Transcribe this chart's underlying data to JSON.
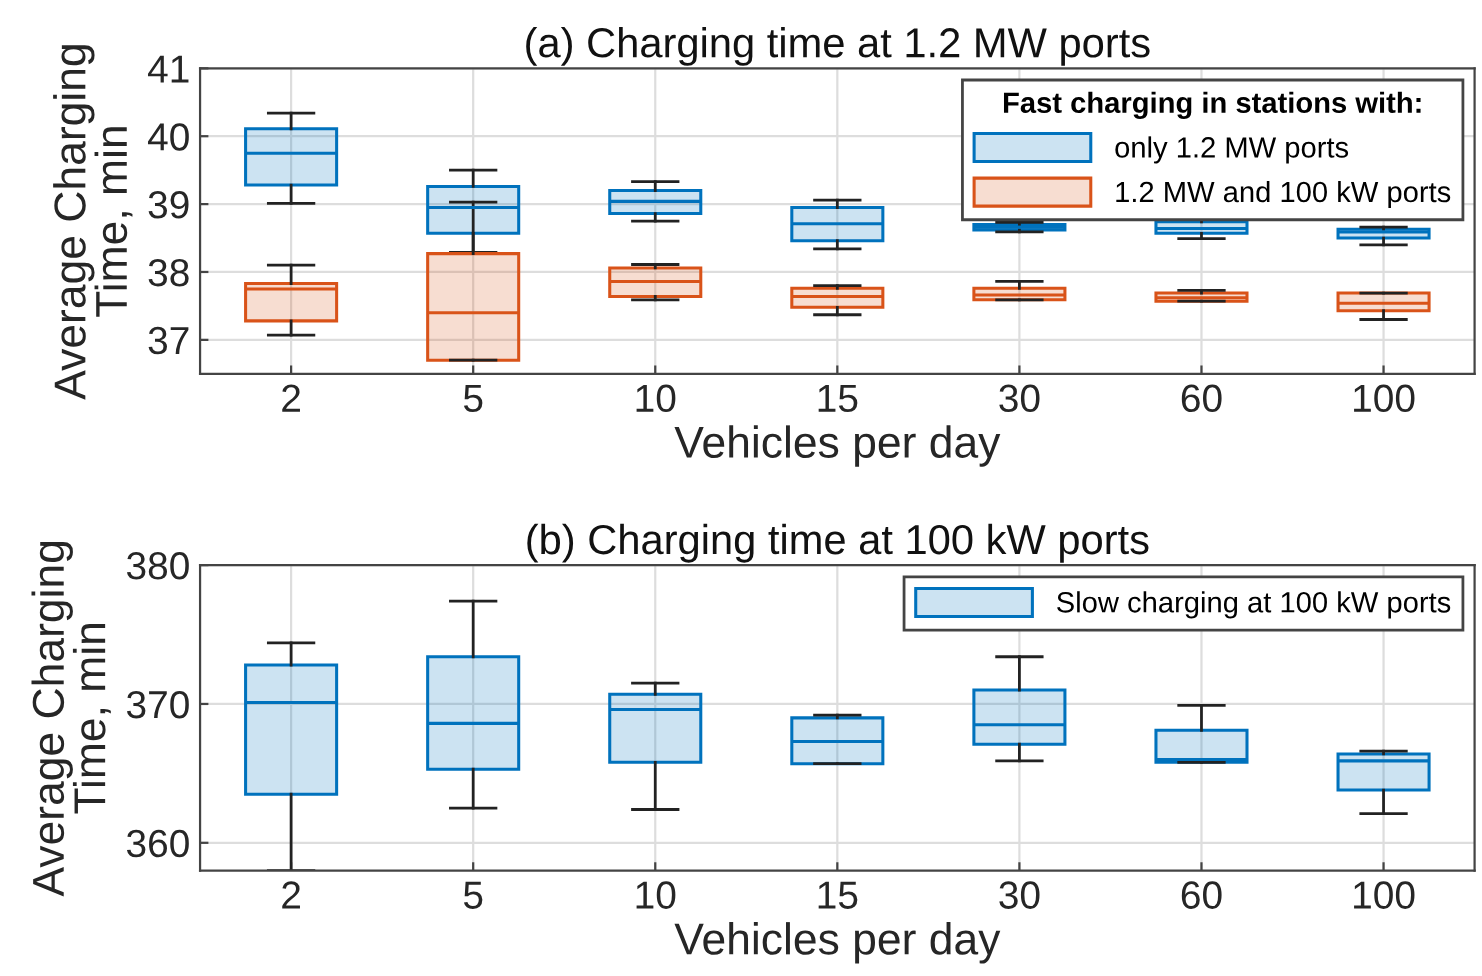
{
  "chart_data": [
    {
      "type": "box",
      "title": "(a) Charging time at 1.2 MW ports",
      "xlabel": "Vehicles per day",
      "ylabel": "Average Charging\nTime, min",
      "legend_title": "Fast charging in stations with:",
      "categories": [
        "2",
        "5",
        "10",
        "15",
        "30",
        "60",
        "100"
      ],
      "ylim": [
        36.5,
        41
      ],
      "yticks": [
        37,
        38,
        39,
        40,
        41
      ],
      "grid": true,
      "legend": "top right",
      "series": [
        {
          "name": "only 1.2 MW ports",
          "color": "#0072bd",
          "boxes": [
            {
              "low": 39.01,
              "q1": 39.28,
              "median": 39.75,
              "q3": 40.11,
              "high": 40.34
            },
            {
              "low": 38.29,
              "q1": 38.57,
              "median": 38.95,
              "q3": 39.26,
              "high": 39.5
            },
            {
              "low": 38.75,
              "q1": 38.86,
              "median": 39.04,
              "q3": 39.2,
              "high": 39.33
            },
            {
              "low": 38.34,
              "q1": 38.46,
              "median": 38.71,
              "q3": 38.95,
              "high": 39.06
            },
            {
              "low": 38.59,
              "q1": 38.62,
              "median": 38.66,
              "q3": 38.7,
              "high": 38.73
            },
            {
              "low": 38.49,
              "q1": 38.57,
              "median": 38.64,
              "q3": 38.74,
              "high": 38.8
            },
            {
              "low": 38.4,
              "q1": 38.5,
              "median": 38.59,
              "q3": 38.63,
              "high": 38.66
            }
          ]
        },
        {
          "name": "1.2 MW and 100 kW ports",
          "color": "#d95319",
          "boxes": [
            {
              "low": 37.07,
              "q1": 37.28,
              "median": 37.75,
              "q3": 37.83,
              "high": 38.1
            },
            {
              "low": 36.7,
              "q1": 36.7,
              "median": 37.4,
              "q3": 38.27,
              "high": 39.03
            },
            {
              "low": 37.59,
              "q1": 37.64,
              "median": 37.86,
              "q3": 38.06,
              "high": 38.11
            },
            {
              "low": 37.37,
              "q1": 37.48,
              "median": 37.64,
              "q3": 37.76,
              "high": 37.8
            },
            {
              "low": 37.59,
              "q1": 37.59,
              "median": 37.66,
              "q3": 37.76,
              "high": 37.86
            },
            {
              "low": 37.57,
              "q1": 37.57,
              "median": 37.62,
              "q3": 37.69,
              "high": 37.73
            },
            {
              "low": 37.3,
              "q1": 37.43,
              "median": 37.54,
              "q3": 37.69,
              "high": 37.69
            }
          ]
        }
      ]
    },
    {
      "type": "box",
      "title": "(b) Charging time at 100 kW ports",
      "xlabel": "Vehicles per day",
      "ylabel": "Average Charging\nTime, min",
      "categories": [
        "2",
        "5",
        "10",
        "15",
        "30",
        "60",
        "100"
      ],
      "ylim": [
        358,
        380
      ],
      "yticks": [
        360,
        370,
        380
      ],
      "grid": true,
      "legend": "top right",
      "series": [
        {
          "name": "Slow charging at 100 kW ports",
          "color": "#0072bd",
          "boxes": [
            {
              "low": 358,
              "q1": 363.5,
              "median": 370.1,
              "q3": 372.8,
              "high": 374.4
            },
            {
              "low": 362.5,
              "q1": 365.3,
              "median": 368.6,
              "q3": 373.4,
              "high": 377.4
            },
            {
              "low": 362.4,
              "q1": 365.8,
              "median": 369.6,
              "q3": 370.7,
              "high": 371.5
            },
            {
              "low": 365.7,
              "q1": 365.7,
              "median": 367.3,
              "q3": 369.0,
              "high": 369.2
            },
            {
              "low": 365.9,
              "q1": 367.1,
              "median": 368.5,
              "q3": 371.0,
              "high": 373.4
            },
            {
              "low": 365.8,
              "q1": 365.8,
              "median": 366.0,
              "q3": 368.1,
              "high": 369.9
            },
            {
              "low": 362.1,
              "q1": 363.8,
              "median": 365.9,
              "q3": 366.4,
              "high": 366.6
            }
          ]
        }
      ]
    }
  ]
}
